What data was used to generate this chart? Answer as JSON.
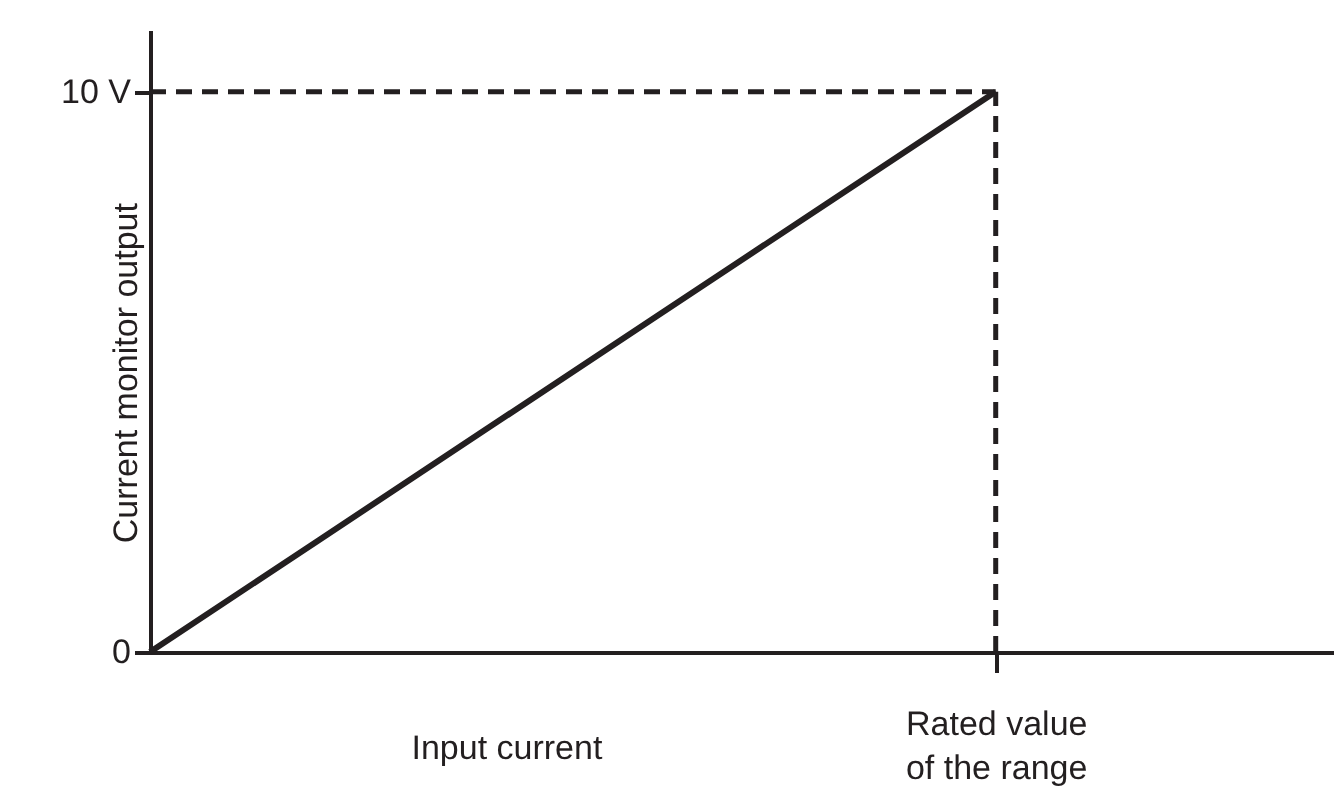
{
  "chart_data": {
    "type": "line",
    "xlabel": "Input current",
    "ylabel": "Current monitor output",
    "categories": [
      null,
      null,
      null,
      null,
      null,
      "Rated value of the range",
      null,
      null
    ],
    "ylim": [
      0,
      11.1
    ],
    "yticks": [
      0,
      {
        "value": 10,
        "label": "10 V"
      }
    ],
    "grid": false,
    "series": [
      {
        "color": "#231f20",
        "values": [
          0,
          2,
          4,
          6,
          8,
          10,
          null,
          null
        ]
      }
    ],
    "ref_lines": [
      {
        "axis": "y",
        "value": 10,
        "line_style": "dashed",
        "color": "#231f20"
      },
      {
        "axis": "x",
        "value": "Rated value of the range",
        "line_style": "dashed",
        "color": "#231f20"
      }
    ]
  }
}
